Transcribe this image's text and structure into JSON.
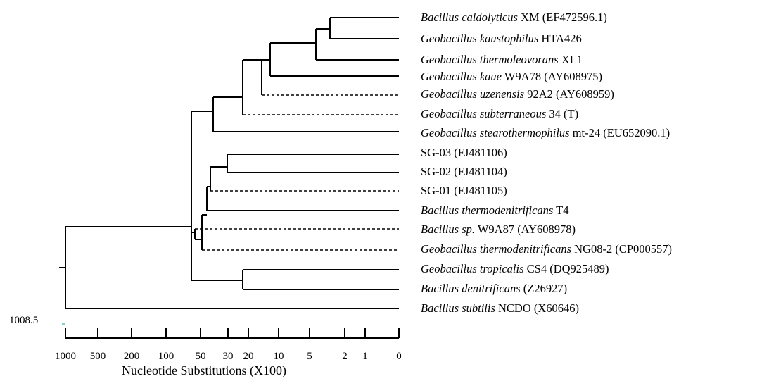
{
  "tree": {
    "root_value": "1008.5",
    "taxa": [
      {
        "italic": "Bacillus caldolyticus",
        "rest": " XM (EF472596.1)"
      },
      {
        "italic": "Geobacillus kaustophilus",
        "rest": " HTA426"
      },
      {
        "italic": "Geobacillus thermoleovorans",
        "rest": " XL1"
      },
      {
        "italic": "Geobacillus kaue",
        "rest": " W9A78 (AY608975)"
      },
      {
        "italic": "Geobacillus uzenensis",
        "rest": " 92A2 (AY608959)"
      },
      {
        "italic": "Geobacillus subterraneous",
        "rest": "  34 (T)"
      },
      {
        "italic": "Geobacillus stearothermophilus",
        "rest": " mt-24 (EU652090.1)"
      },
      {
        "italic": "",
        "rest": "SG-03 (FJ481106)"
      },
      {
        "italic": "",
        "rest": "SG-02 (FJ481104)"
      },
      {
        "italic": "",
        "rest": "SG-01 (FJ481105)"
      },
      {
        "italic": "Bacillus thermodenitrificans",
        "rest": " T4"
      },
      {
        "italic": "Bacillus sp.",
        "rest": " W9A87 (AY608978)"
      },
      {
        "italic": "Geobacillus thermodenitrificans",
        "rest": " NG08-2 (CP000557)"
      },
      {
        "italic": "Geobacillus tropicalis",
        "rest": " CS4 (DQ925489)"
      },
      {
        "italic": "Bacillus denitrificans",
        "rest": " (Z26927)"
      },
      {
        "italic": "Bacillus subtilis",
        "rest": " NCDO (X60646)"
      }
    ]
  },
  "axis": {
    "ticks": [
      "1000",
      "500",
      "200",
      "100",
      "50",
      "30",
      "20",
      "10",
      "5",
      "2",
      "1",
      "0"
    ],
    "title": "Nucleotide Substitutions (X100)"
  }
}
